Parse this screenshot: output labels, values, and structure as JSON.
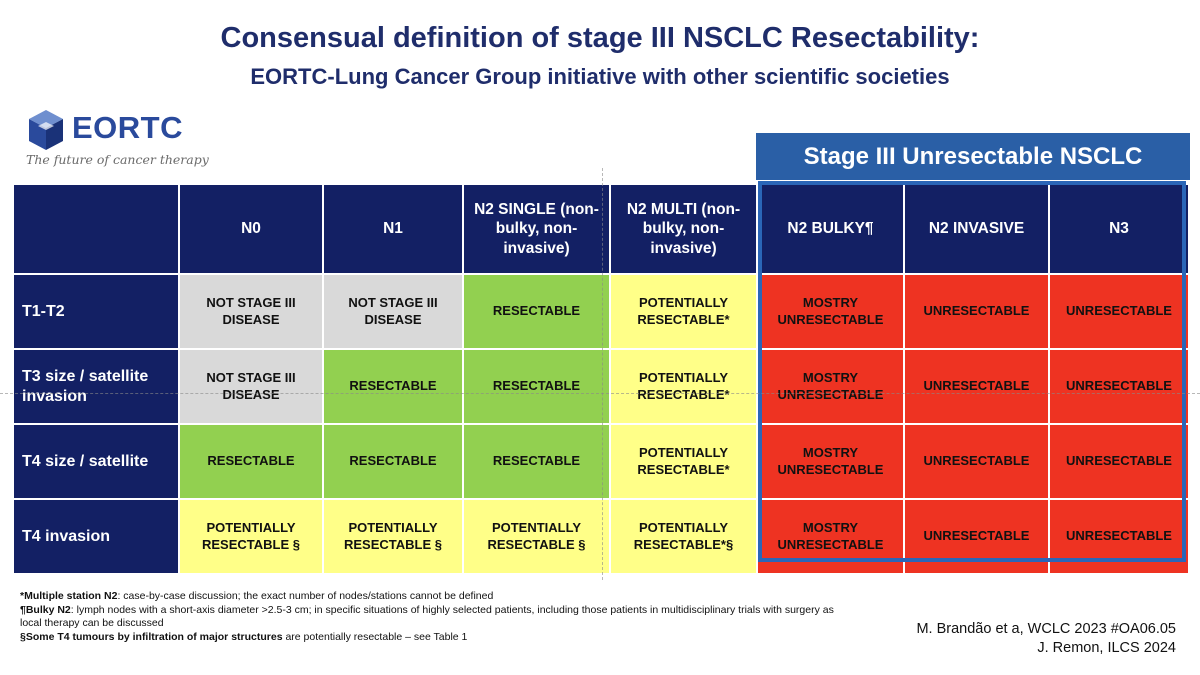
{
  "header": {
    "title": "Consensual definition of stage III NSCLC Resectability:",
    "subtitle": "EORTC-Lung Cancer Group initiative with other scientific societies"
  },
  "logo": {
    "word": "EORTC",
    "tagline": "The future of cancer therapy"
  },
  "stage_banner": "Stage III Unresectable NSCLC",
  "table": {
    "columns": [
      {
        "label": "N0"
      },
      {
        "label": "N1"
      },
      {
        "label": "N2 SINGLE (non-bulky, non-invasive)"
      },
      {
        "label": "N2 MULTI (non-bulky, non-invasive)"
      },
      {
        "label": "N2 BULKY¶"
      },
      {
        "label": "N2 INVASIVE"
      },
      {
        "label": "N3"
      }
    ],
    "rows": [
      {
        "label": "T1-T2",
        "cells": [
          {
            "text": "NOT STAGE III DISEASE",
            "color": "#d9d9d9"
          },
          {
            "text": "NOT STAGE III DISEASE",
            "color": "#d9d9d9"
          },
          {
            "text": "RESECTABLE",
            "color": "#92d050"
          },
          {
            "text": "POTENTIALLY RESECTABLE*",
            "color": "#ffff88"
          },
          {
            "text": "MOSTRY UNRESECTABLE",
            "color": "#ee3322"
          },
          {
            "text": "UNRESECTABLE",
            "color": "#ee3322"
          },
          {
            "text": "UNRESECTABLE",
            "color": "#ee3322"
          }
        ]
      },
      {
        "label": "T3 size / satellite invasion",
        "cells": [
          {
            "text": "NOT STAGE III DISEASE",
            "color": "#d9d9d9"
          },
          {
            "text": "RESECTABLE",
            "color": "#92d050"
          },
          {
            "text": "RESECTABLE",
            "color": "#92d050"
          },
          {
            "text": "POTENTIALLY RESECTABLE*",
            "color": "#ffff88"
          },
          {
            "text": "MOSTRY UNRESECTABLE",
            "color": "#ee3322"
          },
          {
            "text": "UNRESECTABLE",
            "color": "#ee3322"
          },
          {
            "text": "UNRESECTABLE",
            "color": "#ee3322"
          }
        ]
      },
      {
        "label": "T4 size / satellite",
        "cells": [
          {
            "text": "RESECTABLE",
            "color": "#92d050"
          },
          {
            "text": "RESECTABLE",
            "color": "#92d050"
          },
          {
            "text": "RESECTABLE",
            "color": "#92d050"
          },
          {
            "text": "POTENTIALLY RESECTABLE*",
            "color": "#ffff88"
          },
          {
            "text": "MOSTRY UNRESECTABLE",
            "color": "#ee3322"
          },
          {
            "text": "UNRESECTABLE",
            "color": "#ee3322"
          },
          {
            "text": "UNRESECTABLE",
            "color": "#ee3322"
          }
        ]
      },
      {
        "label": "T4 invasion",
        "cells": [
          {
            "text": "POTENTIALLY RESECTABLE §",
            "color": "#ffff88"
          },
          {
            "text": "POTENTIALLY RESECTABLE §",
            "color": "#ffff88"
          },
          {
            "text": "POTENTIALLY RESECTABLE §",
            "color": "#ffff88"
          },
          {
            "text": "POTENTIALLY RESECTABLE*§",
            "color": "#ffff88"
          },
          {
            "text": "MOSTRY UNRESECTABLE",
            "color": "#ee3322"
          },
          {
            "text": "UNRESECTABLE",
            "color": "#ee3322"
          },
          {
            "text": "UNRESECTABLE",
            "color": "#ee3322"
          }
        ]
      }
    ]
  },
  "footnotes": [
    {
      "lead": "*Multiple station N2",
      "text": ": case-by-case discussion; the exact number of nodes/stations cannot be defined"
    },
    {
      "lead": "¶Bulky N2",
      "text": ": lymph nodes with a short-axis diameter >2.5-3 cm; in specific situations of highly selected patients, including those patients in multidisciplinary trials with surgery as local therapy can be discussed"
    },
    {
      "lead": "§Some T4 tumours by infiltration of major structures",
      "text": " are potentially resectable – see Table 1"
    }
  ],
  "citation": [
    "M. Brandão et a, WCLC 2023 #OA06.05",
    "J. Remon, ILCS 2024"
  ],
  "colors": {
    "navy": "#132064",
    "title": "#1f2d6b",
    "banner": "#2a5fa6",
    "not_stage_iii": "#d9d9d9",
    "resectable": "#92d050",
    "potentially_resectable": "#ffff88",
    "unresectable": "#ee3322"
  }
}
